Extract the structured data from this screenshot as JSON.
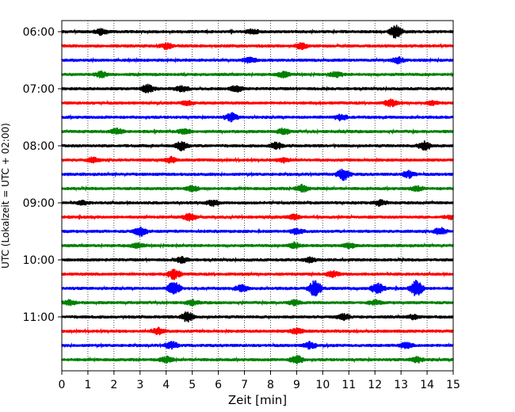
{
  "chart_data": {
    "type": "line",
    "title": "",
    "xlabel": "Zeit  [min]",
    "ylabel": "UTC (Lokalzeit = UTC + 02:00)",
    "xlim": [
      0,
      15
    ],
    "xticks": [
      0,
      1,
      2,
      3,
      4,
      5,
      6,
      7,
      8,
      9,
      10,
      11,
      12,
      13,
      14,
      15
    ],
    "x_grid": true,
    "trace_interval_min": 15,
    "yticks": [
      "06:00",
      "07:00",
      "08:00",
      "09:00",
      "10:00",
      "11:00"
    ],
    "trace_colors": [
      "#000000",
      "#ff0000",
      "#0000ff",
      "#008000"
    ],
    "traces": [
      {
        "start": "06:00",
        "color": "#000000",
        "bursts": [
          [
            1.5,
            0.5
          ],
          [
            7.3,
            0.4
          ],
          [
            12.8,
            1.2
          ]
        ]
      },
      {
        "start": "06:15",
        "color": "#ff0000",
        "bursts": [
          [
            4.0,
            0.5
          ],
          [
            9.2,
            0.5
          ]
        ]
      },
      {
        "start": "06:30",
        "color": "#0000ff",
        "bursts": [
          [
            7.2,
            0.5
          ],
          [
            12.9,
            0.5
          ]
        ]
      },
      {
        "start": "06:45",
        "color": "#008000",
        "bursts": [
          [
            1.5,
            0.5
          ],
          [
            8.5,
            0.5
          ],
          [
            10.5,
            0.5
          ]
        ]
      },
      {
        "start": "07:00",
        "color": "#000000",
        "bursts": [
          [
            3.3,
            0.7
          ],
          [
            4.6,
            0.5
          ],
          [
            6.7,
            0.5
          ]
        ]
      },
      {
        "start": "07:15",
        "color": "#ff0000",
        "bursts": [
          [
            4.8,
            0.4
          ],
          [
            12.6,
            0.6
          ],
          [
            14.2,
            0.3
          ]
        ]
      },
      {
        "start": "07:30",
        "color": "#0000ff",
        "bursts": [
          [
            6.5,
            0.7
          ],
          [
            10.7,
            0.5
          ]
        ]
      },
      {
        "start": "07:45",
        "color": "#008000",
        "bursts": [
          [
            2.1,
            0.5
          ],
          [
            4.7,
            0.5
          ],
          [
            8.5,
            0.5
          ]
        ]
      },
      {
        "start": "08:00",
        "color": "#000000",
        "bursts": [
          [
            4.6,
            0.8
          ],
          [
            8.2,
            0.6
          ],
          [
            13.9,
            0.8
          ]
        ]
      },
      {
        "start": "08:15",
        "color": "#ff0000",
        "bursts": [
          [
            1.2,
            0.4
          ],
          [
            4.2,
            0.5
          ],
          [
            8.5,
            0.4
          ]
        ]
      },
      {
        "start": "08:30",
        "color": "#0000ff",
        "bursts": [
          [
            10.8,
            1.0
          ],
          [
            13.3,
            0.6
          ]
        ]
      },
      {
        "start": "08:45",
        "color": "#008000",
        "bursts": [
          [
            5.0,
            0.5
          ],
          [
            9.2,
            0.6
          ],
          [
            13.6,
            0.4
          ]
        ]
      },
      {
        "start": "09:00",
        "color": "#000000",
        "bursts": [
          [
            0.8,
            0.3
          ],
          [
            5.8,
            0.5
          ],
          [
            12.2,
            0.5
          ]
        ]
      },
      {
        "start": "09:15",
        "color": "#ff0000",
        "bursts": [
          [
            4.9,
            0.6
          ],
          [
            8.9,
            0.4
          ],
          [
            14.9,
            0.3
          ]
        ]
      },
      {
        "start": "09:30",
        "color": "#0000ff",
        "bursts": [
          [
            3.0,
            0.9
          ],
          [
            9.0,
            0.5
          ],
          [
            14.5,
            0.6
          ]
        ]
      },
      {
        "start": "09:45",
        "color": "#008000",
        "bursts": [
          [
            2.9,
            0.4
          ],
          [
            8.9,
            0.5
          ],
          [
            11.0,
            0.4
          ]
        ]
      },
      {
        "start": "10:00",
        "color": "#000000",
        "bursts": [
          [
            4.6,
            0.5
          ],
          [
            9.5,
            0.4
          ]
        ]
      },
      {
        "start": "10:15",
        "color": "#ff0000",
        "bursts": [
          [
            4.3,
            0.9
          ],
          [
            10.4,
            0.5
          ]
        ]
      },
      {
        "start": "10:30",
        "color": "#0000ff",
        "bursts": [
          [
            4.3,
            1.2
          ],
          [
            6.9,
            0.6
          ],
          [
            9.7,
            1.5
          ],
          [
            12.1,
            1.0
          ],
          [
            13.6,
            1.5
          ]
        ]
      },
      {
        "start": "10:45",
        "color": "#008000",
        "bursts": [
          [
            0.3,
            0.4
          ],
          [
            5.0,
            0.4
          ],
          [
            8.9,
            0.4
          ],
          [
            12.0,
            0.4
          ]
        ]
      },
      {
        "start": "11:00",
        "color": "#000000",
        "bursts": [
          [
            4.8,
            0.9
          ],
          [
            10.8,
            0.5
          ],
          [
            13.5,
            0.4
          ]
        ]
      },
      {
        "start": "11:15",
        "color": "#ff0000",
        "bursts": [
          [
            3.7,
            0.6
          ],
          [
            9.0,
            0.5
          ]
        ]
      },
      {
        "start": "11:30",
        "color": "#0000ff",
        "bursts": [
          [
            4.2,
            0.6
          ],
          [
            9.5,
            0.6
          ],
          [
            13.2,
            0.5
          ]
        ]
      },
      {
        "start": "11:45",
        "color": "#008000",
        "bursts": [
          [
            4.0,
            0.5
          ],
          [
            9.0,
            0.7
          ],
          [
            13.6,
            0.5
          ]
        ]
      }
    ]
  }
}
